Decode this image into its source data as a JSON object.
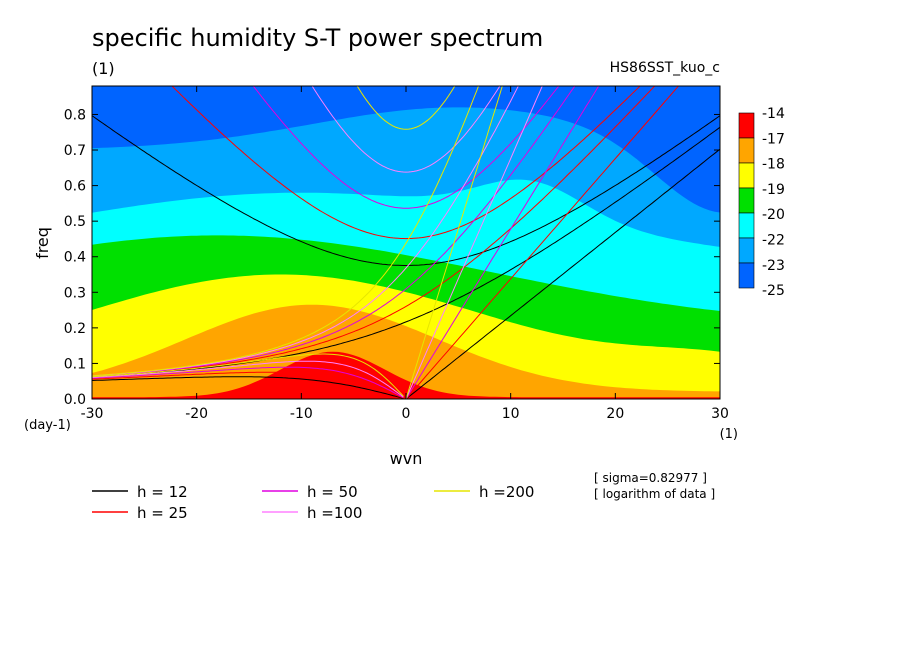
{
  "header": {
    "title": "specific humidity S-T power spectrum",
    "unit": "(1)",
    "run": "HS86SST_kuo_c"
  },
  "notes": {
    "sigma": "[ sigma=0.82977 ]",
    "log": "[ logarithm of data ]"
  },
  "chart_data": {
    "type": "heatmap",
    "title": "specific humidity S-T power spectrum",
    "xlabel": "wvn",
    "ylabel": "freq",
    "x_unit": "(1)",
    "y_unit": "(day-1)",
    "xlim": [
      -30,
      30
    ],
    "ylim": [
      0,
      0.88
    ],
    "xticks": [
      -30,
      -20,
      -10,
      0,
      10,
      20,
      30
    ],
    "xtick_labels": [
      "-30",
      "-20",
      "-10",
      "0",
      "10",
      "20",
      "30"
    ],
    "yticks": [
      0,
      0.1,
      0.2,
      0.3,
      0.4,
      0.5,
      0.6,
      0.7,
      0.8
    ],
    "ytick_labels": [
      "0.0",
      "0.1",
      "0.2",
      "0.3",
      "0.4",
      "0.5",
      "0.6",
      "0.7",
      "0.8"
    ],
    "colorbar": {
      "labels": [
        "-14",
        "-17",
        "-18",
        "-19",
        "-20",
        "-22",
        "-23",
        "-25"
      ],
      "colors": [
        "#ff0000",
        "#ffa500",
        "#ffff00",
        "#00e000",
        "#00ffff",
        "#00a8ff",
        "#0064ff"
      ]
    },
    "dispersion_curves": [
      {
        "name": "h = 12",
        "equivalent_depth": 12,
        "color": "#000000"
      },
      {
        "name": "h = 25",
        "equivalent_depth": 25,
        "color": "#ff0000"
      },
      {
        "name": "h = 50",
        "equivalent_depth": 50,
        "color": "#e000e0"
      },
      {
        "name": "h =100",
        "equivalent_depth": 100,
        "color": "#ff80ff"
      },
      {
        "name": "h =200",
        "equivalent_depth": 200,
        "color": "#e6e600"
      }
    ],
    "grid": false
  }
}
